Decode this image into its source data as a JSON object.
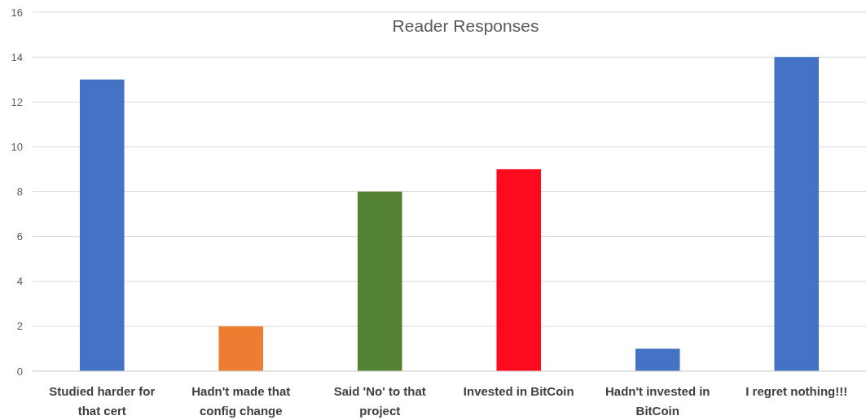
{
  "chart_data": {
    "type": "bar",
    "title": "Reader Responses",
    "categories": [
      "Studied harder for that cert",
      "Hadn't made that config change",
      "Said 'No' to that project",
      "Invested in BitCoin",
      "Hadn't invested in BitCoin",
      "I regret nothing!!!"
    ],
    "values": [
      13,
      2,
      8,
      9,
      1,
      14
    ],
    "colors": [
      "#4472c4",
      "#ed7d31",
      "#548235",
      "#fe0a1e",
      "#4472c4",
      "#4472c4"
    ],
    "ylim": [
      0,
      16
    ],
    "yticks": [
      0,
      2,
      4,
      6,
      8,
      10,
      12,
      14,
      16
    ],
    "grid": "y"
  }
}
